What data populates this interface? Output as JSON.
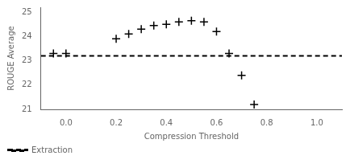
{
  "chart_data": {
    "type": "scatter",
    "xlabel": "Compression Threshold",
    "ylabel": "ROUGE Average",
    "xlim": [
      -0.1,
      1.1
    ],
    "ylim": [
      21.0,
      25.2
    ],
    "xticks": [
      {
        "value": 0.0,
        "label": "0.0"
      },
      0.2,
      0.4,
      0.6,
      0.8,
      {
        "value": 1.0,
        "label": "1.0"
      }
    ],
    "yticks": [
      21,
      22,
      23,
      24,
      25
    ],
    "grid": false,
    "legend": "lower left",
    "series": [
      {
        "type": "scatter",
        "marker": "plus",
        "color": "black",
        "x": [
          -0.05,
          0.0,
          0.2,
          0.25,
          0.3,
          0.35,
          0.4,
          0.45,
          0.5,
          0.55,
          0.6,
          0.65,
          0.7,
          0.75
        ],
        "values": [
          23.3,
          23.3,
          23.9,
          24.1,
          24.3,
          24.45,
          24.5,
          24.6,
          24.65,
          24.6,
          24.2,
          23.3,
          22.4,
          21.2
        ]
      },
      {
        "type": "hline",
        "name": "Extraction",
        "color": "black",
        "line_style": "dashed",
        "y": 23.2
      }
    ]
  }
}
